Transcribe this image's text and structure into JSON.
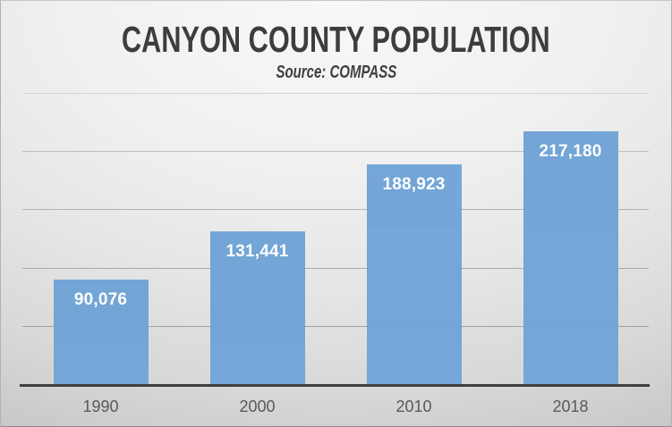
{
  "chart_data": {
    "type": "bar",
    "title": "CANYON COUNTY POPULATION",
    "subtitle": "Source: COMPASS",
    "categories": [
      "1990",
      "2000",
      "2010",
      "2018"
    ],
    "values": [
      90076,
      131441,
      188923,
      217180
    ],
    "value_labels": [
      "90,076",
      "131,441",
      "188,923",
      "217,180"
    ],
    "xlabel": "",
    "ylabel": "",
    "ylim": [
      0,
      250000
    ],
    "gridline_step": 50000,
    "grid": true,
    "legend": false,
    "value_label_position": "inside-end",
    "colors": {
      "bar": "#6fa3d6",
      "value_label": "#ffffff",
      "title": "#3d3d3d",
      "subtitle": "#404040",
      "axis_line": "#3f3f3f",
      "tick_label": "#595959",
      "gridline": "#b3b3b3",
      "background_light": "#f8f8f8",
      "background_dark": "#c5c5c5"
    }
  }
}
